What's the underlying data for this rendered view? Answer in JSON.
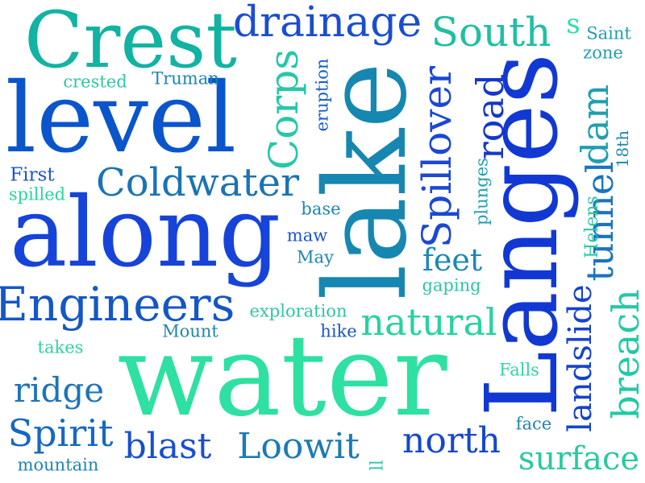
{
  "words": {
    "crest": {
      "text": "Crest",
      "color": "#11b3a2"
    },
    "level": {
      "text": "level",
      "color": "#0a55cc"
    },
    "lake": {
      "text": "lake",
      "color": "#1687b0"
    },
    "along": {
      "text": "along",
      "color": "#1643d9"
    },
    "water": {
      "text": "water",
      "color": "#2ee0a1"
    },
    "langes": {
      "text": "Langes",
      "color": "#1238d4"
    },
    "engineers": {
      "text": "Engineers",
      "color": "#1457c6"
    },
    "drainage": {
      "text": "drainage",
      "color": "#1a4ed0"
    },
    "south": {
      "text": "South",
      "color": "#1fbfa3"
    },
    "coldwater": {
      "text": "Coldwater",
      "color": "#1b73b4"
    },
    "corps": {
      "text": "Corps",
      "color": "#27c7a8"
    },
    "spillover": {
      "text": "Spillover",
      "color": "#1b48d4"
    },
    "road": {
      "text": "road",
      "color": "#1538c9"
    },
    "dam": {
      "text": "dam",
      "color": "#1f9fb0"
    },
    "tunnel": {
      "text": "tunnel",
      "color": "#1a74bd"
    },
    "breach": {
      "text": "breach",
      "color": "#22c9a5"
    },
    "landslide": {
      "text": "landslide",
      "color": "#1543cb"
    },
    "natural": {
      "text": "natural",
      "color": "#27d2a0"
    },
    "feet": {
      "text": "feet",
      "color": "#1b87b3"
    },
    "ridge": {
      "text": "ridge",
      "color": "#1c74b9"
    },
    "spirit": {
      "text": "Spirit",
      "color": "#1867c3"
    },
    "blast": {
      "text": "blast",
      "color": "#1a4ed0"
    },
    "loowit": {
      "text": "Loowit",
      "color": "#1a7bb8"
    },
    "north": {
      "text": "north",
      "color": "#1648cc"
    },
    "surface": {
      "text": "surface",
      "color": "#28c9a0"
    },
    "crested": {
      "text": "crested",
      "color": "#2ec7a5"
    },
    "truman": {
      "text": "Truman",
      "color": "#1a85b5"
    },
    "eruption": {
      "text": "eruption",
      "color": "#1a5fc6"
    },
    "first": {
      "text": "First",
      "color": "#1b55c9"
    },
    "spilled": {
      "text": "spilled",
      "color": "#2fd39f"
    },
    "base": {
      "text": "base",
      "color": "#1d86b2"
    },
    "maw": {
      "text": "maw",
      "color": "#1b55c9"
    },
    "may": {
      "text": "May",
      "color": "#1d86b2"
    },
    "plunges": {
      "text": "plunges",
      "color": "#1f9fb0"
    },
    "helens": {
      "text": "Helens",
      "color": "#2dc6a4"
    },
    "18th": {
      "text": "18th",
      "color": "#1d86b2"
    },
    "saint": {
      "text": "Saint",
      "color": "#1f9fb0"
    },
    "zone": {
      "text": "zone",
      "color": "#1f9fb0"
    },
    "s": {
      "text": "s",
      "color": "#2ee0a1"
    },
    "gaping": {
      "text": "gaping",
      "color": "#2dc6a4"
    },
    "exploration": {
      "text": "exploration",
      "color": "#2dc6a4"
    },
    "mount": {
      "text": "Mount",
      "color": "#1d86b2"
    },
    "hike": {
      "text": "hike",
      "color": "#1b55c9"
    },
    "takes": {
      "text": "takes",
      "color": "#2fd39f"
    },
    "falls": {
      "text": "Falls",
      "color": "#2fd39f"
    },
    "face": {
      "text": "face",
      "color": "#1d86b2"
    },
    "mountain": {
      "text": "mountain",
      "color": "#1d86b2"
    },
    "ll": {
      "text": "ll",
      "color": "#2dc6a4"
    }
  }
}
